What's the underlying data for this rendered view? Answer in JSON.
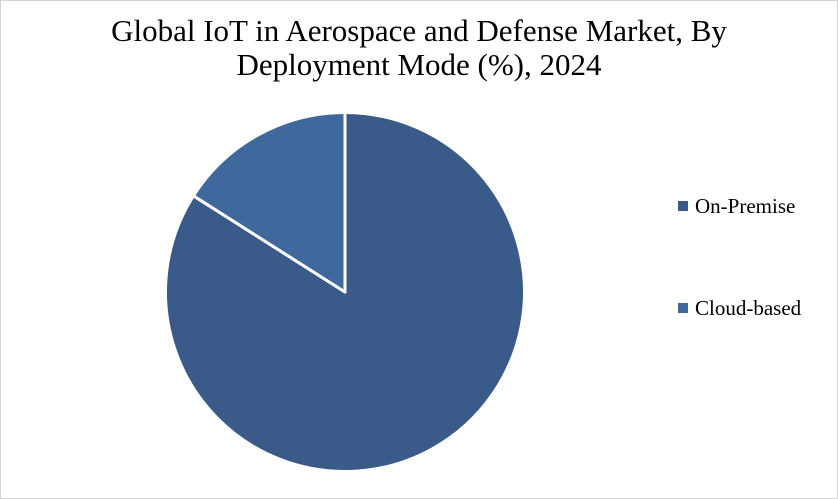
{
  "window": {
    "background": "#ffffff",
    "border_color": "#d3d3d3"
  },
  "chart_data": {
    "type": "pie",
    "title": "Global IoT in Aerospace and Defense Market, By\nDeployment Mode (%), 2024",
    "categories": [
      "On-Premise",
      "Cloud-based"
    ],
    "values": [
      84,
      16
    ],
    "unit": "%",
    "colors": [
      "#3a5a8a",
      "#3f689c"
    ],
    "slice_border_color": "#ffffff",
    "slice_border_width": 3,
    "start_angle_deg": 0,
    "clockwise": true,
    "data_labels": false,
    "legend_position": "right"
  }
}
